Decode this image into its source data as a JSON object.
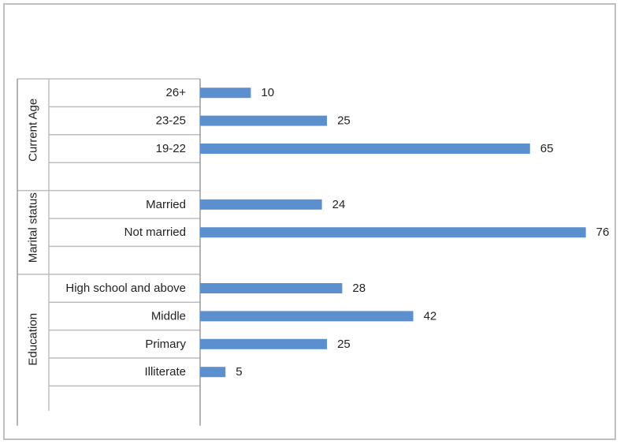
{
  "chart_data": {
    "type": "bar",
    "orientation": "horizontal",
    "title": "",
    "xlabel": "",
    "ylabel": "",
    "xlim": [
      0,
      80
    ],
    "grid": false,
    "legend": "none",
    "data_labels": true,
    "bar_color": "#5b8fcd",
    "groups": [
      {
        "name": "Current Age",
        "categories": [
          "26+",
          "23-25",
          "19-22"
        ],
        "values": [
          10,
          25,
          65
        ]
      },
      {
        "name": "Marital status",
        "categories": [
          "Married",
          "Not married"
        ],
        "values": [
          24,
          76
        ]
      },
      {
        "name": "Education",
        "categories": [
          "High school and above",
          "Middle",
          "Primary",
          "Illiterate"
        ],
        "values": [
          28,
          42,
          25,
          5
        ]
      }
    ]
  }
}
